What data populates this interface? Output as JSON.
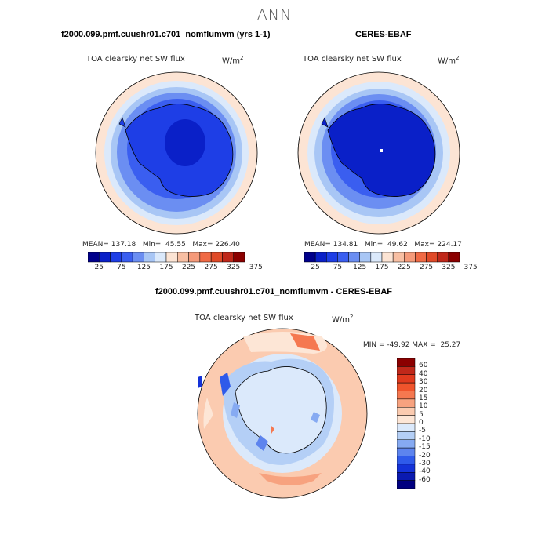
{
  "figure": {
    "title": "ANN"
  },
  "panels": [
    {
      "title": "f2000.099.pmf.cuushr01.c701_nomflumvm (yrs 1-1)",
      "variable": "TOA clearsky net SW flux",
      "units": "W/m",
      "units_exp": "2",
      "stats": "MEAN= 137.18   Min=  45.55   Max= 226.40"
    },
    {
      "title": "CERES-EBAF",
      "variable": "TOA clearsky net SW flux",
      "units": "W/m",
      "units_exp": "2",
      "stats": "MEAN= 134.81   Min=  49.62   Max= 224.17"
    },
    {
      "title": "f2000.099.pmf.cuushr01.c701_nomflumvm - CERES-EBAF",
      "variable": "TOA clearsky net SW flux",
      "units": "W/m",
      "units_exp": "2",
      "stats": "MIN = -49.92 MAX =  25.27"
    }
  ],
  "colorbar_abs": {
    "labels": [
      "25",
      "75",
      "125",
      "175",
      "225",
      "275",
      "325",
      "375"
    ],
    "colors": [
      "#00008b",
      "#0a20c8",
      "#1e3ee6",
      "#3a5ef0",
      "#6b8ef2",
      "#a8c6f5",
      "#dbe9fb",
      "#fce4d4",
      "#f8bfa3",
      "#f59a7a",
      "#f06a45",
      "#e04a28",
      "#c0281a",
      "#8b0000"
    ]
  },
  "colorbar_diff": {
    "labels": [
      "60",
      "40",
      "30",
      "20",
      "15",
      "10",
      "5",
      "0",
      "-5",
      "-10",
      "-15",
      "-20",
      "-30",
      "-40",
      "-60"
    ],
    "colors": [
      "#8b0000",
      "#c0281a",
      "#e03a1e",
      "#f0542c",
      "#f57850",
      "#f7a27f",
      "#fbcbb0",
      "#fde6d6",
      "#dbe9fb",
      "#b4cff6",
      "#86aaf2",
      "#5d84ee",
      "#2f5aea",
      "#1432d8",
      "#0a1ab0",
      "#000080"
    ]
  },
  "palette": {
    "ocean_light": "#fce4d4",
    "coastline": "#000000"
  }
}
